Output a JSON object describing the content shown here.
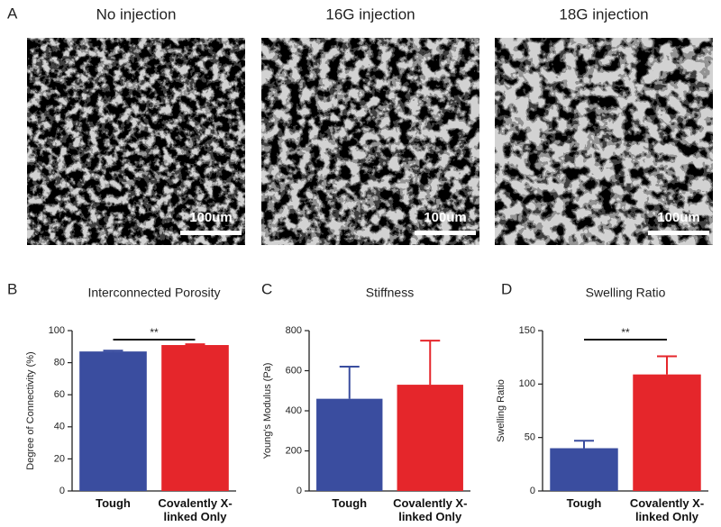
{
  "panel_a": {
    "label": "A",
    "images": [
      {
        "title": "No injection",
        "scale_bar": "100um"
      },
      {
        "title": "16G injection",
        "scale_bar": "100um"
      },
      {
        "title": "18G injection",
        "scale_bar": "100um"
      }
    ]
  },
  "chart_data": [
    {
      "type": "bar",
      "panel_label": "B",
      "title": "Interconnected Porosity",
      "y_label": "Degree of Connectivity (%)",
      "categories": [
        "Tough",
        "Covalently X-linked Only"
      ],
      "values": [
        87,
        91
      ],
      "errors": [
        0.5,
        0.5
      ],
      "colors": [
        "#3a4d9f",
        "#e5262b"
      ],
      "ylim": [
        0,
        100
      ],
      "yticks": [
        0,
        20,
        40,
        60,
        80,
        100
      ],
      "significance": "**"
    },
    {
      "type": "bar",
      "panel_label": "C",
      "title": "Stiffness",
      "y_label": "Young's Modulus (Pa)",
      "categories": [
        "Tough",
        "Covalently X-linked Only"
      ],
      "values": [
        460,
        530
      ],
      "errors": [
        160,
        220
      ],
      "colors": [
        "#3a4d9f",
        "#e5262b"
      ],
      "ylim": [
        0,
        800
      ],
      "yticks": [
        0,
        200,
        400,
        600,
        800
      ]
    },
    {
      "type": "bar",
      "panel_label": "D",
      "title": "Swelling Ratio",
      "y_label": "Swelling Ratio",
      "categories": [
        "Tough",
        "Covalently X-linked Only"
      ],
      "values": [
        40,
        109
      ],
      "errors": [
        7,
        17
      ],
      "colors": [
        "#3a4d9f",
        "#e5262b"
      ],
      "ylim": [
        0,
        150
      ],
      "yticks": [
        0,
        50,
        100,
        150
      ],
      "significance": "**"
    }
  ]
}
